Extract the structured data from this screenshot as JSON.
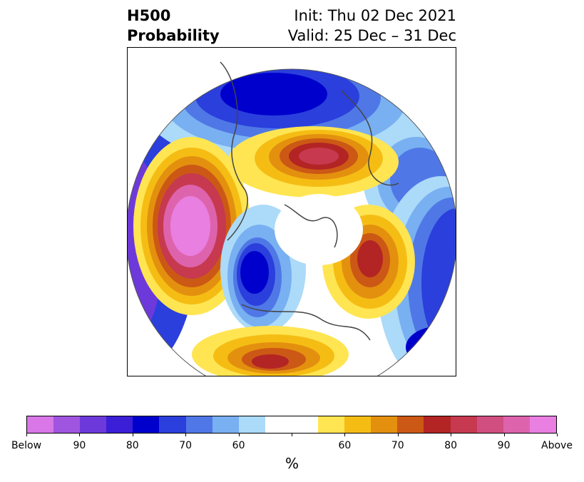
{
  "title": {
    "left_line1": "H500",
    "left_line2": "Probability",
    "right_line1": "Init: Thu 02 Dec 2021",
    "right_line2": "Valid: 25 Dec – 31 Dec"
  },
  "colorbar": {
    "colors": [
      "#d977e8",
      "#a055e0",
      "#6e39da",
      "#3a1fd6",
      "#0000cc",
      "#2a3fdc",
      "#4f78e6",
      "#78b0f2",
      "#acdaf9",
      "#ffffff",
      "#ffffff",
      "#ffe552",
      "#f5bd14",
      "#e3900f",
      "#cc5815",
      "#b32424",
      "#c6394f",
      "#d04f80",
      "#de63ad",
      "#e97fe0"
    ],
    "tick_labels": [
      "Below",
      "90",
      "80",
      "70",
      "60",
      "",
      "60",
      "70",
      "80",
      "90",
      "Above"
    ],
    "unit": "%"
  },
  "map": {
    "projection": "north-polar-stereographic",
    "colors": {
      "deep_blue": "#0000cc",
      "mid_blue": "#2a3fdc",
      "light_blue": "#4f78e6",
      "pale_blue": "#78b0f2",
      "paler_blue": "#acdaf9",
      "yellow": "#ffe552",
      "gold": "#f5bd14",
      "orange": "#e3900f",
      "dark_orange": "#cc5815",
      "red": "#b32424",
      "crimson": "#c6394f",
      "pink": "#de63ad",
      "magenta": "#e97fe0",
      "purple": "#6e39da"
    }
  }
}
